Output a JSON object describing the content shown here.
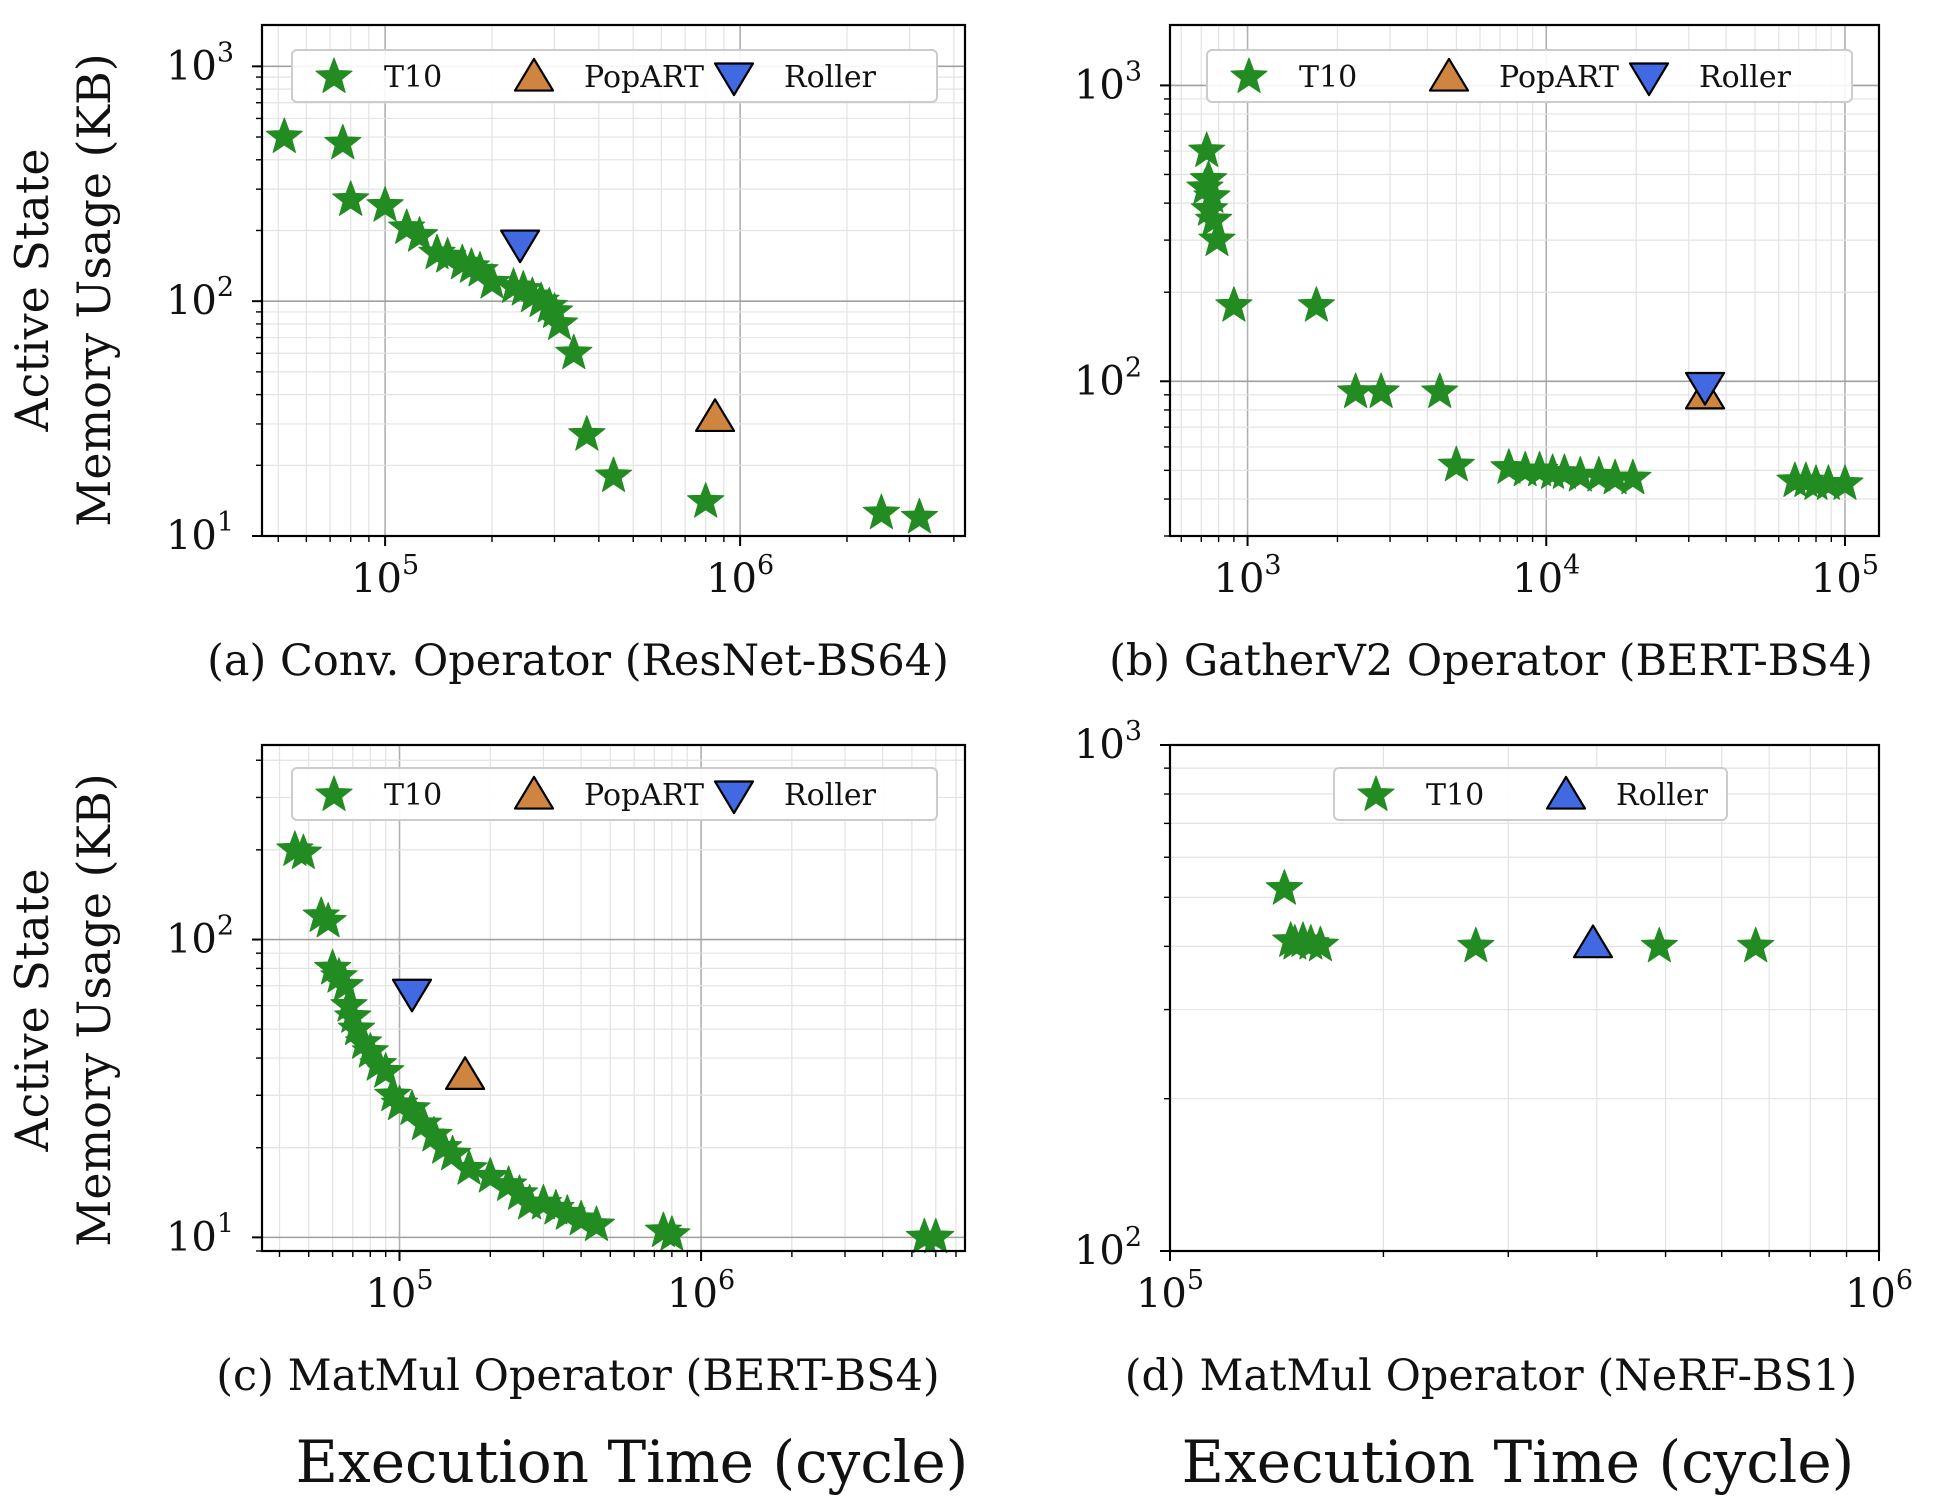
{
  "figure": {
    "ylabel_line1": "Active State",
    "ylabel_line2": "Memory Usage (KB)",
    "xlabel_left": "Execution Time (cycle)",
    "xlabel_right": "Execution Time (cycle)"
  },
  "colors": {
    "T10": "#228b22",
    "PopART": "#cd853f",
    "Roller": "#4169e1"
  },
  "chart_data": [
    {
      "id": "a",
      "type": "scatter",
      "caption": "(a) Conv. Operator (ResNet-BS64)",
      "xscale": "log",
      "yscale": "log",
      "xlim": [
        45000,
        4300000
      ],
      "ylim": [
        10,
        1500
      ],
      "xticks": [
        {
          "base": "10",
          "exp": "5",
          "value": 100000
        },
        {
          "base": "10",
          "exp": "6",
          "value": 1000000
        }
      ],
      "yticks": [
        {
          "base": "10",
          "exp": "1",
          "value": 10
        },
        {
          "base": "10",
          "exp": "2",
          "value": 100
        },
        {
          "base": "10",
          "exp": "3",
          "value": 1000
        }
      ],
      "legend": [
        "T10",
        "PopART",
        "Roller"
      ],
      "series": [
        {
          "name": "T10",
          "marker": "star",
          "points": [
            [
              52000,
              500
            ],
            [
              76000,
              470
            ],
            [
              80000,
              270
            ],
            [
              100000,
              255
            ],
            [
              115000,
              205
            ],
            [
              125000,
              190
            ],
            [
              140000,
              160
            ],
            [
              150000,
              155
            ],
            [
              165000,
              145
            ],
            [
              175000,
              140
            ],
            [
              185000,
              135
            ],
            [
              200000,
              120
            ],
            [
              230000,
              115
            ],
            [
              245000,
              112
            ],
            [
              260000,
              105
            ],
            [
              275000,
              100
            ],
            [
              290000,
              95
            ],
            [
              300000,
              90
            ],
            [
              310000,
              80
            ],
            [
              340000,
              60
            ],
            [
              370000,
              27
            ],
            [
              440000,
              18
            ],
            [
              800000,
              14
            ],
            [
              2500000,
              12.5
            ],
            [
              3200000,
              12
            ]
          ]
        },
        {
          "name": "PopART",
          "marker": "triangle-up",
          "points": [
            [
              850000,
              32
            ]
          ]
        },
        {
          "name": "Roller",
          "marker": "triangle-down",
          "points": [
            [
              240000,
              175
            ]
          ]
        }
      ]
    },
    {
      "id": "b",
      "type": "scatter",
      "caption": "(b) GatherV2 Operator (BERT-BS4)",
      "xscale": "log",
      "yscale": "log",
      "xlim": [
        550,
        130000
      ],
      "ylim": [
        30,
        1600
      ],
      "xticks": [
        {
          "base": "10",
          "exp": "3",
          "value": 1000
        },
        {
          "base": "10",
          "exp": "4",
          "value": 10000
        },
        {
          "base": "10",
          "exp": "5",
          "value": 100000
        }
      ],
      "yticks": [
        {
          "base": "10",
          "exp": "2",
          "value": 100
        },
        {
          "base": "10",
          "exp": "3",
          "value": 1000
        }
      ],
      "legend": [
        "T10",
        "PopART",
        "Roller"
      ],
      "series": [
        {
          "name": "T10",
          "marker": "star",
          "points": [
            [
              730,
              600
            ],
            [
              740,
              480
            ],
            [
              720,
              450
            ],
            [
              760,
              420
            ],
            [
              745,
              380
            ],
            [
              770,
              350
            ],
            [
              790,
              300
            ],
            [
              900,
              180
            ],
            [
              1700,
              180
            ],
            [
              2300,
              92
            ],
            [
              2800,
              92
            ],
            [
              4400,
              92
            ],
            [
              5000,
              52
            ],
            [
              7500,
              51
            ],
            [
              8500,
              50
            ],
            [
              9500,
              50
            ],
            [
              10500,
              49
            ],
            [
              11500,
              49
            ],
            [
              13000,
              48
            ],
            [
              15000,
              48
            ],
            [
              17000,
              47
            ],
            [
              19500,
              47
            ],
            [
              68000,
              46
            ],
            [
              74000,
              46
            ],
            [
              80000,
              45
            ],
            [
              88000,
              45
            ],
            [
              100000,
              45
            ]
          ]
        },
        {
          "name": "PopART",
          "marker": "triangle-up",
          "points": [
            [
              34000,
              90
            ]
          ]
        },
        {
          "name": "Roller",
          "marker": "triangle-down",
          "points": [
            [
              34000,
              96
            ]
          ]
        }
      ]
    },
    {
      "id": "c",
      "type": "scatter",
      "caption": "(c) MatMul Operator (BERT-BS4)",
      "xscale": "log",
      "yscale": "log",
      "xlim": [
        35000,
        7500000
      ],
      "ylim": [
        9,
        450
      ],
      "xticks": [
        {
          "base": "10",
          "exp": "5",
          "value": 100000
        },
        {
          "base": "10",
          "exp": "6",
          "value": 1000000
        }
      ],
      "yticks": [
        {
          "base": "10",
          "exp": "1",
          "value": 10
        },
        {
          "base": "10",
          "exp": "2",
          "value": 100
        }
      ],
      "legend": [
        "T10",
        "PopART",
        "Roller"
      ],
      "series": [
        {
          "name": "T10",
          "marker": "star",
          "points": [
            [
              45000,
              200
            ],
            [
              48000,
              195
            ],
            [
              55000,
              120
            ],
            [
              58000,
              115
            ],
            [
              60000,
              80
            ],
            [
              63000,
              75
            ],
            [
              66000,
              70
            ],
            [
              68000,
              60
            ],
            [
              70000,
              55
            ],
            [
              72000,
              50
            ],
            [
              76000,
              45
            ],
            [
              80000,
              42
            ],
            [
              85000,
              38
            ],
            [
              90000,
              36
            ],
            [
              95000,
              30
            ],
            [
              100000,
              28
            ],
            [
              110000,
              27
            ],
            [
              120000,
              24
            ],
            [
              130000,
              22
            ],
            [
              140000,
              20
            ],
            [
              150000,
              19
            ],
            [
              170000,
              17
            ],
            [
              200000,
              16
            ],
            [
              230000,
              15
            ],
            [
              250000,
              14
            ],
            [
              270000,
              13
            ],
            [
              300000,
              13
            ],
            [
              330000,
              12.5
            ],
            [
              360000,
              12
            ],
            [
              400000,
              11.5
            ],
            [
              450000,
              11
            ],
            [
              750000,
              10.5
            ],
            [
              800000,
              10.2
            ],
            [
              5500000,
              10
            ],
            [
              6000000,
              10
            ]
          ]
        },
        {
          "name": "PopART",
          "marker": "triangle-up",
          "points": [
            [
              165000,
              35
            ]
          ]
        },
        {
          "name": "Roller",
          "marker": "triangle-down",
          "points": [
            [
              110000,
              66
            ]
          ]
        }
      ]
    },
    {
      "id": "d",
      "type": "scatter",
      "caption": "(d) MatMul Operator (NeRF-BS1)",
      "xscale": "log",
      "yscale": "log",
      "xlim": [
        100000,
        1000000
      ],
      "ylim": [
        100,
        1000
      ],
      "xticks": [
        {
          "base": "10",
          "exp": "5",
          "value": 100000
        },
        {
          "base": "10",
          "exp": "6",
          "value": 1000000
        }
      ],
      "yticks": [
        {
          "base": "10",
          "exp": "2",
          "value": 100
        },
        {
          "base": "10",
          "exp": "3",
          "value": 1000
        }
      ],
      "legend": [
        "T10",
        "Roller"
      ],
      "series": [
        {
          "name": "T10",
          "marker": "star",
          "points": [
            [
              145000,
              520
            ],
            [
              148000,
              410
            ],
            [
              150000,
              405
            ],
            [
              154000,
              410
            ],
            [
              158000,
              405
            ],
            [
              163000,
              402
            ],
            [
              270000,
              400
            ],
            [
              490000,
              400
            ],
            [
              670000,
              400
            ]
          ]
        },
        {
          "name": "Roller",
          "marker": "triangle-up",
          "points": [
            [
              395000,
              405
            ]
          ]
        }
      ]
    }
  ]
}
